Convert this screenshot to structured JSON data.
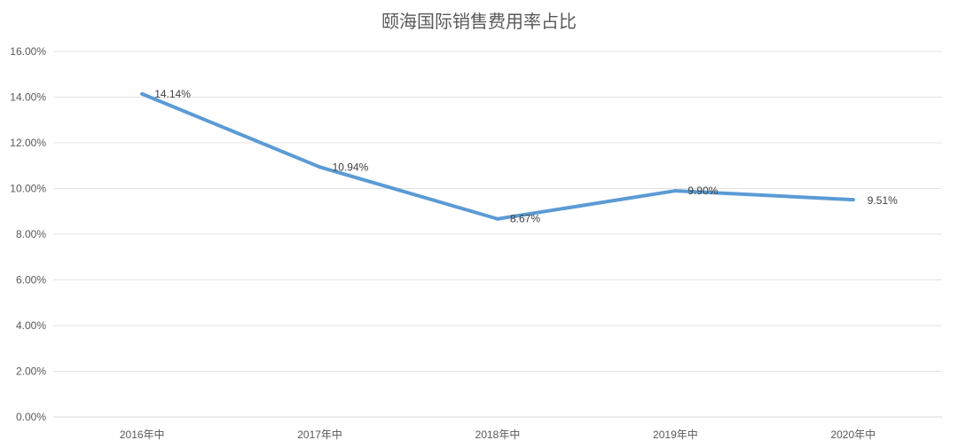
{
  "chart_data": {
    "type": "line",
    "title": "颐海国际销售费用率占比",
    "categories": [
      "2016年中",
      "2017年中",
      "2018年中",
      "2019年中",
      "2020年中"
    ],
    "series": [
      {
        "values": [
          14.14,
          10.94,
          8.67,
          9.9,
          9.51
        ],
        "color": "#5b9bd5"
      }
    ],
    "data_labels": [
      "14.14%",
      "10.94%",
      "8.67%",
      "9.90%",
      "9.51%"
    ],
    "y_ticks": [
      "0.00%",
      "2.00%",
      "4.00%",
      "6.00%",
      "8.00%",
      "10.00%",
      "12.00%",
      "14.00%",
      "16.00%"
    ],
    "ylim": [
      0,
      16
    ],
    "grid": true,
    "legend": "none"
  }
}
